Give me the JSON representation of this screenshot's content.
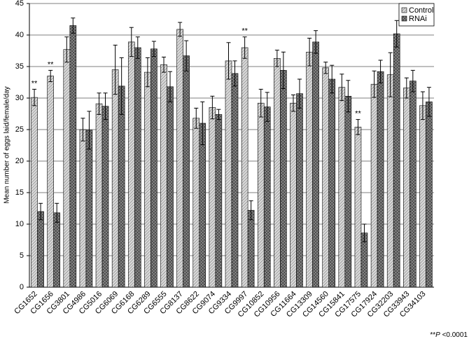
{
  "chart_data": {
    "type": "bar",
    "y_label": "Mean number of eggs laid/female/day",
    "categories": [
      "CG1652",
      "CG1656",
      "CG3801",
      "CG4986",
      "CG5016",
      "CG6069",
      "CG6168",
      "CG6289",
      "CG6555",
      "CG8137",
      "CG8622",
      "CG9074",
      "CG9334",
      "CG9997",
      "CG10852",
      "CG10956",
      "CG11664",
      "CG13309",
      "CG14560",
      "CG15841",
      "CG17575",
      "CG17924",
      "CG32203",
      "CG33943",
      "CG34103"
    ],
    "series": [
      {
        "name": "Control",
        "color": "#d9d9d9",
        "values": [
          30.1,
          33.5,
          37.7,
          25.0,
          29.1,
          34.5,
          38.9,
          34.1,
          35.3,
          40.9,
          26.8,
          28.5,
          35.9,
          38.0,
          29.2,
          36.3,
          29.2,
          37.3,
          34.8,
          31.7,
          25.4,
          32.2,
          33.7,
          31.6,
          28.8
        ],
        "errors": [
          1.3,
          0.9,
          2.0,
          1.8,
          1.7,
          3.9,
          2.3,
          2.3,
          1.2,
          1.1,
          1.6,
          1.8,
          2.9,
          1.7,
          2.2,
          1.3,
          1.3,
          2.2,
          0.9,
          2.1,
          1.2,
          2.1,
          3.5,
          1.6,
          2.2
        ]
      },
      {
        "name": "RNAi",
        "color": "#8c8c8c",
        "values": [
          12.0,
          11.8,
          41.5,
          24.9,
          28.7,
          31.9,
          38.0,
          37.8,
          31.8,
          36.7,
          26.0,
          27.4,
          33.9,
          12.2,
          28.6,
          34.4,
          30.7,
          38.9,
          33.0,
          30.3,
          8.6,
          34.2,
          40.2,
          32.7,
          29.4
        ],
        "errors": [
          1.3,
          1.5,
          1.2,
          3.0,
          2.1,
          4.5,
          1.7,
          1.2,
          2.4,
          2.4,
          3.4,
          0.8,
          2.0,
          1.5,
          2.3,
          2.9,
          2.3,
          1.8,
          2.2,
          2.5,
          1.4,
          1.8,
          2.1,
          1.7,
          2.3
        ]
      }
    ],
    "annotations": [
      {
        "text": "**",
        "category": "CG1652",
        "series": "Control"
      },
      {
        "text": "**",
        "category": "CG1656",
        "series": "Control"
      },
      {
        "text": "**",
        "category": "CG9997",
        "series": "Control"
      },
      {
        "text": "**",
        "category": "CG17575",
        "series": "Control"
      }
    ],
    "footnote": {
      "prefix": "**",
      "italic": "P",
      "suffix": "<0.0001"
    },
    "ylim": [
      0,
      45
    ],
    "yticks": [
      0,
      5,
      10,
      15,
      20,
      25,
      30,
      35,
      40,
      45
    ],
    "grid": true,
    "legend": "top-right"
  }
}
